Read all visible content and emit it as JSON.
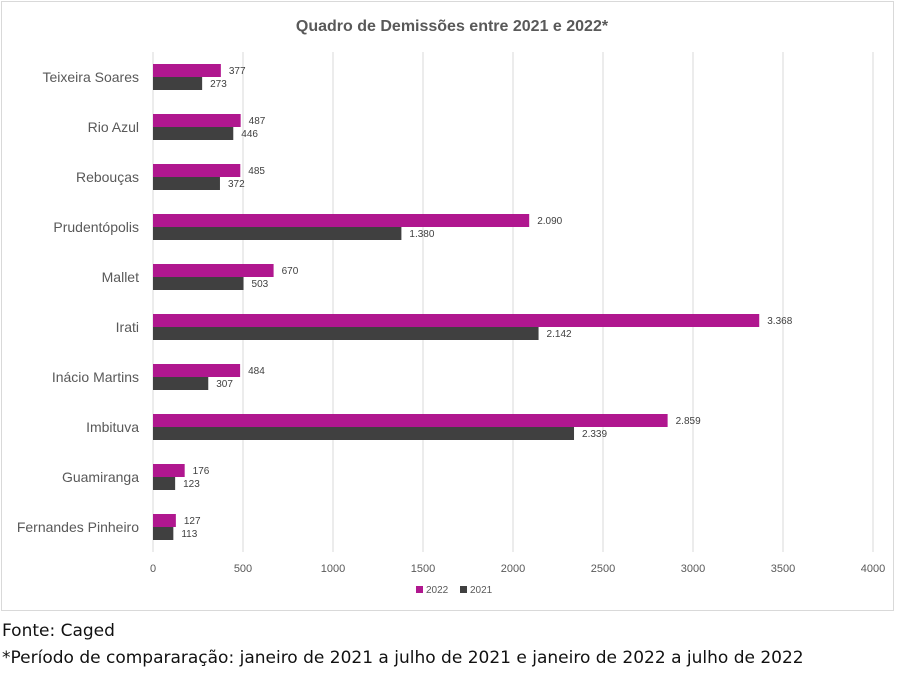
{
  "chart_data": {
    "type": "bar",
    "orientation": "horizontal",
    "title": "Quadro de Demissões entre 2021 e 2022*",
    "categories": [
      "Teixeira Soares",
      "Rio Azul",
      "Rebouças",
      "Prudentópolis",
      "Mallet",
      "Irati",
      "Inácio Martins",
      "Imbituva",
      "Guamiranga",
      "Fernandes Pinheiro"
    ],
    "series": [
      {
        "name": "2022",
        "color": "#b0178f",
        "values": [
          377,
          487,
          485,
          2090,
          670,
          3368,
          484,
          2859,
          176,
          127
        ],
        "labels": [
          "377",
          "487",
          "485",
          "2.090",
          "670",
          "3.368",
          "484",
          "2.859",
          "176",
          "127"
        ]
      },
      {
        "name": "2021",
        "color": "#404040",
        "values": [
          273,
          446,
          372,
          1380,
          503,
          2142,
          307,
          2339,
          123,
          113
        ],
        "labels": [
          "273",
          "446",
          "372",
          "1.380",
          "503",
          "2.142",
          "307",
          "2.339",
          "123",
          "113"
        ]
      }
    ],
    "xlim": [
      0,
      4000
    ],
    "xticks": [
      "0",
      "500",
      "1000",
      "1500",
      "2000",
      "2500",
      "3000",
      "3500",
      "4000"
    ],
    "grid": "vertical",
    "legend": "bottom"
  },
  "notes": {
    "source": "Fonte: Caged",
    "period": "*Período de compararação: janeiro de 2021 a julho de 2021 e janeiro de 2022 a julho de 2022"
  }
}
